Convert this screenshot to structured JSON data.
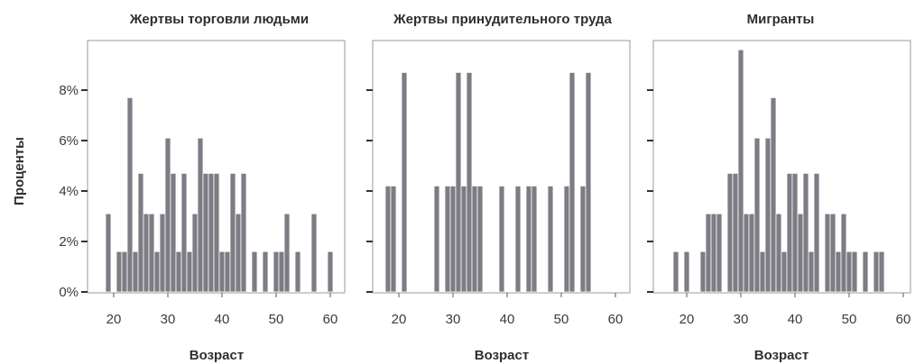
{
  "chart_data": [
    {
      "type": "bar",
      "title": "Жертвы торговли людьми",
      "xlabel": "Возраст",
      "ylabel": "Проценты",
      "xlim": [
        15,
        62
      ],
      "ylim": [
        0,
        10
      ],
      "xticks": [
        "20",
        "30",
        "40",
        "50",
        "60"
      ],
      "yticks": [
        "0%",
        "2%",
        "4%",
        "6%",
        "8%"
      ],
      "bins": [
        {
          "x": 19,
          "y": 3.1
        },
        {
          "x": 21,
          "y": 1.6
        },
        {
          "x": 22,
          "y": 1.6
        },
        {
          "x": 23,
          "y": 7.7
        },
        {
          "x": 24,
          "y": 1.6
        },
        {
          "x": 25,
          "y": 4.7
        },
        {
          "x": 26,
          "y": 3.1
        },
        {
          "x": 27,
          "y": 3.1
        },
        {
          "x": 28,
          "y": 1.6
        },
        {
          "x": 29,
          "y": 3.1
        },
        {
          "x": 30,
          "y": 6.1
        },
        {
          "x": 31,
          "y": 4.7
        },
        {
          "x": 32,
          "y": 1.6
        },
        {
          "x": 33,
          "y": 4.7
        },
        {
          "x": 34,
          "y": 1.6
        },
        {
          "x": 35,
          "y": 3.1
        },
        {
          "x": 36,
          "y": 6.1
        },
        {
          "x": 37,
          "y": 4.7
        },
        {
          "x": 38,
          "y": 4.7
        },
        {
          "x": 39,
          "y": 4.7
        },
        {
          "x": 40,
          "y": 1.6
        },
        {
          "x": 41,
          "y": 1.6
        },
        {
          "x": 42,
          "y": 4.7
        },
        {
          "x": 43,
          "y": 3.1
        },
        {
          "x": 44,
          "y": 4.7
        },
        {
          "x": 46,
          "y": 1.6
        },
        {
          "x": 48,
          "y": 1.6
        },
        {
          "x": 50,
          "y": 1.6
        },
        {
          "x": 51,
          "y": 1.6
        },
        {
          "x": 52,
          "y": 3.1
        },
        {
          "x": 54,
          "y": 1.6
        },
        {
          "x": 57,
          "y": 3.1
        },
        {
          "x": 60,
          "y": 1.6
        }
      ]
    },
    {
      "type": "bar",
      "title": "Жертвы принудительного труда",
      "xlabel": "Возраст",
      "ylabel": "",
      "xlim": [
        15,
        62
      ],
      "ylim": [
        0,
        10
      ],
      "xticks": [
        "20",
        "30",
        "40",
        "50",
        "60"
      ],
      "yticks": [
        "",
        "",
        "",
        "",
        ""
      ],
      "bins": [
        {
          "x": 18,
          "y": 4.2
        },
        {
          "x": 19,
          "y": 4.2
        },
        {
          "x": 21,
          "y": 8.7
        },
        {
          "x": 27,
          "y": 4.2
        },
        {
          "x": 29,
          "y": 4.2
        },
        {
          "x": 30,
          "y": 4.2
        },
        {
          "x": 31,
          "y": 8.7
        },
        {
          "x": 32,
          "y": 4.2
        },
        {
          "x": 33,
          "y": 8.7
        },
        {
          "x": 34,
          "y": 4.2
        },
        {
          "x": 35,
          "y": 4.2
        },
        {
          "x": 39,
          "y": 4.2
        },
        {
          "x": 42,
          "y": 4.2
        },
        {
          "x": 44,
          "y": 4.2
        },
        {
          "x": 45,
          "y": 4.2
        },
        {
          "x": 48,
          "y": 4.2
        },
        {
          "x": 51,
          "y": 4.2
        },
        {
          "x": 52,
          "y": 8.7
        },
        {
          "x": 54,
          "y": 4.2
        },
        {
          "x": 55,
          "y": 8.7
        }
      ]
    },
    {
      "type": "bar",
      "title": "Мигранты",
      "xlabel": "Возраст",
      "ylabel": "",
      "xlim": [
        15,
        62
      ],
      "ylim": [
        0,
        10
      ],
      "xticks": [
        "20",
        "30",
        "40",
        "50",
        "60"
      ],
      "yticks": [
        "",
        "",
        "",
        "",
        ""
      ],
      "bins": [
        {
          "x": 18,
          "y": 1.6
        },
        {
          "x": 20,
          "y": 1.6
        },
        {
          "x": 23,
          "y": 1.6
        },
        {
          "x": 24,
          "y": 3.1
        },
        {
          "x": 25,
          "y": 3.1
        },
        {
          "x": 26,
          "y": 3.1
        },
        {
          "x": 28,
          "y": 4.7
        },
        {
          "x": 29,
          "y": 4.7
        },
        {
          "x": 30,
          "y": 9.6
        },
        {
          "x": 31,
          "y": 3.1
        },
        {
          "x": 32,
          "y": 3.1
        },
        {
          "x": 33,
          "y": 6.1
        },
        {
          "x": 34,
          "y": 1.6
        },
        {
          "x": 35,
          "y": 6.1
        },
        {
          "x": 36,
          "y": 7.7
        },
        {
          "x": 37,
          "y": 3.1
        },
        {
          "x": 38,
          "y": 1.6
        },
        {
          "x": 39,
          "y": 4.7
        },
        {
          "x": 40,
          "y": 4.7
        },
        {
          "x": 41,
          "y": 3.1
        },
        {
          "x": 42,
          "y": 4.7
        },
        {
          "x": 43,
          "y": 1.6
        },
        {
          "x": 44,
          "y": 4.7
        },
        {
          "x": 46,
          "y": 3.1
        },
        {
          "x": 47,
          "y": 3.1
        },
        {
          "x": 48,
          "y": 1.6
        },
        {
          "x": 49,
          "y": 3.1
        },
        {
          "x": 50,
          "y": 1.6
        },
        {
          "x": 51,
          "y": 1.6
        },
        {
          "x": 53,
          "y": 1.6
        },
        {
          "x": 55,
          "y": 1.6
        },
        {
          "x": 56,
          "y": 1.6
        }
      ]
    }
  ],
  "colors": {
    "bar": "#7c7c84",
    "frame": "#9a9a9a",
    "text": "#2e2e2e"
  }
}
